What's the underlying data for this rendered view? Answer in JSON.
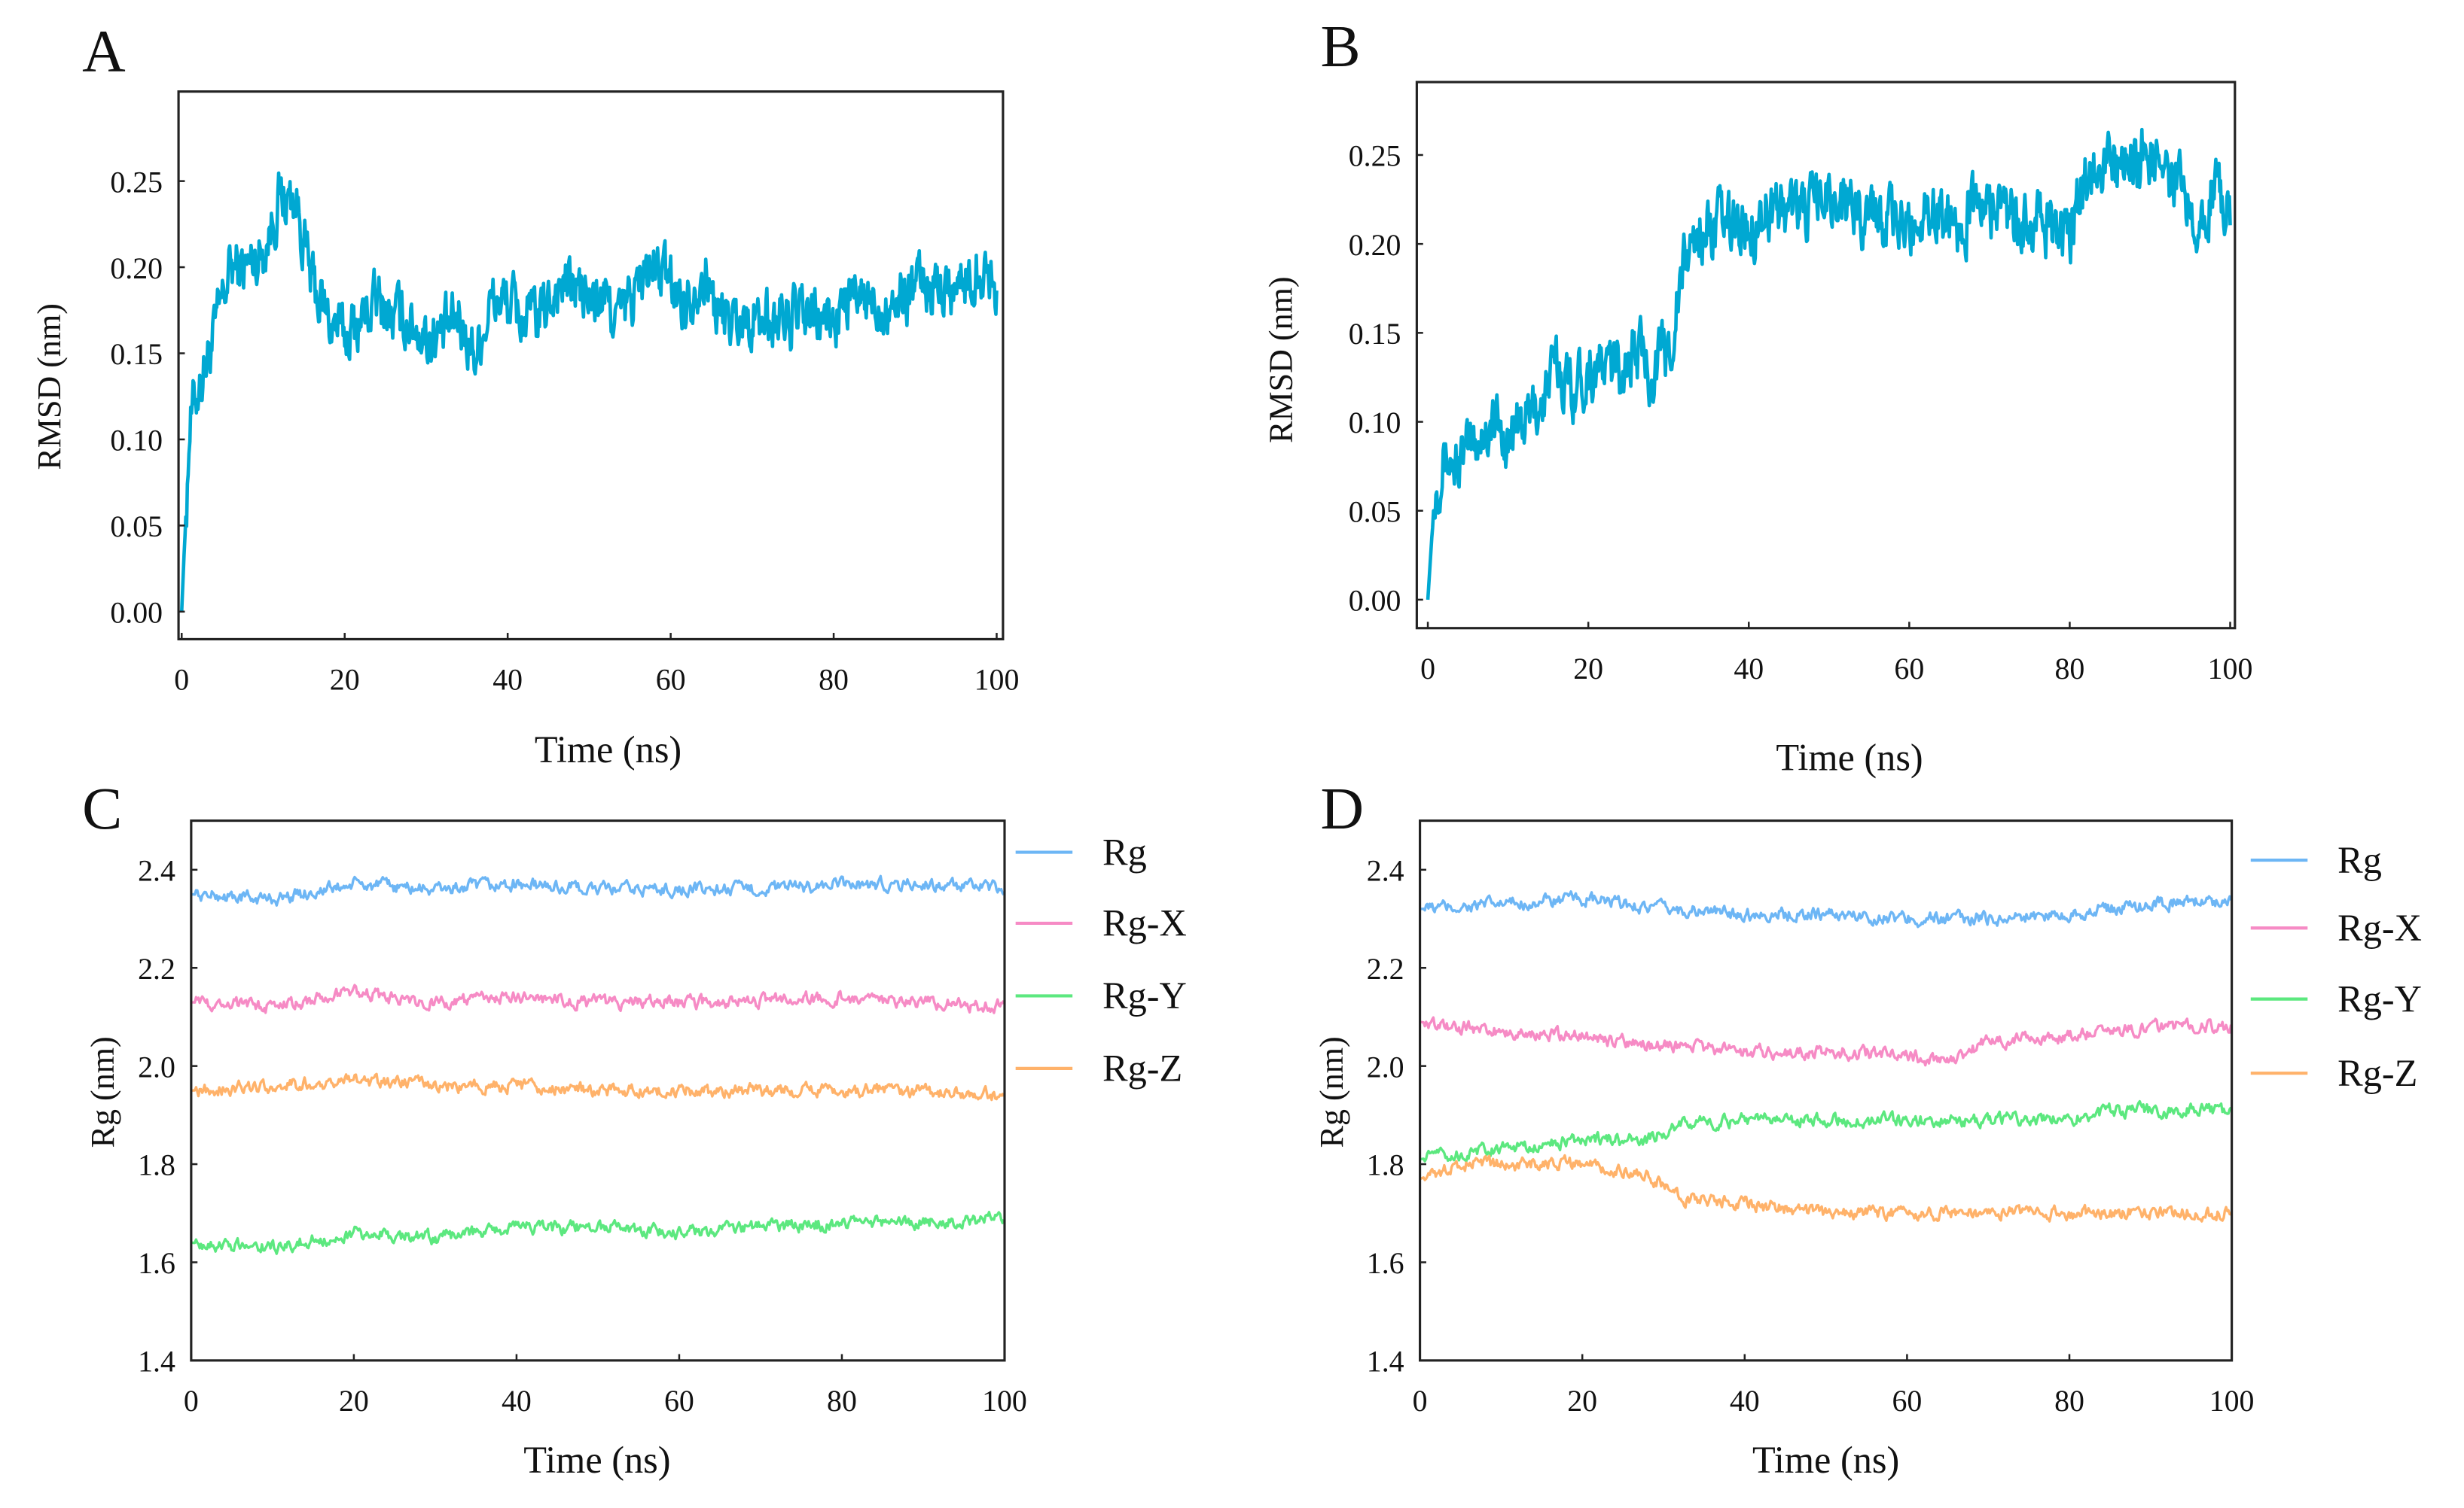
{
  "chart_data": [
    {
      "id": "A",
      "panel_label": "A",
      "type": "line",
      "xlabel": "Time (ns)",
      "ylabel": "RMSD (nm)",
      "xlim": [
        0,
        100
      ],
      "ylim": [
        -0.016,
        0.302
      ],
      "xticks": [
        "0",
        "20",
        "40",
        "60",
        "80",
        "100"
      ],
      "yticks": [
        "0.00",
        "0.05",
        "0.10",
        "0.15",
        "0.20",
        "0.25"
      ],
      "series": [
        {
          "name": "RMSD",
          "color": "#00A8D2",
          "x": [
            0,
            1,
            2,
            4,
            6,
            8,
            10,
            12,
            14,
            16,
            18,
            20,
            22,
            24,
            26,
            28,
            30,
            32,
            34,
            36,
            38,
            40,
            42,
            44,
            46,
            48,
            50,
            52,
            54,
            56,
            58,
            60,
            62,
            64,
            66,
            68,
            70,
            72,
            74,
            76,
            78,
            80,
            82,
            84,
            86,
            88,
            90,
            92,
            94,
            96,
            98,
            100
          ],
          "y": [
            0.0,
            0.11,
            0.13,
            0.16,
            0.2,
            0.2,
            0.21,
            0.24,
            0.24,
            0.19,
            0.17,
            0.16,
            0.17,
            0.18,
            0.17,
            0.17,
            0.16,
            0.16,
            0.17,
            0.15,
            0.18,
            0.18,
            0.17,
            0.17,
            0.19,
            0.19,
            0.18,
            0.18,
            0.17,
            0.19,
            0.2,
            0.19,
            0.18,
            0.2,
            0.17,
            0.17,
            0.17,
            0.17,
            0.17,
            0.17,
            0.17,
            0.17,
            0.18,
            0.18,
            0.18,
            0.18,
            0.19,
            0.19,
            0.19,
            0.19,
            0.2,
            0.19
          ]
        }
      ]
    },
    {
      "id": "B",
      "panel_label": "B",
      "type": "line",
      "xlabel": "Time (ns)",
      "ylabel": "RMSD (nm)",
      "xlim": [
        0,
        100
      ],
      "ylim": [
        -0.016,
        0.291
      ],
      "xticks": [
        "0",
        "20",
        "40",
        "60",
        "80",
        "100"
      ],
      "yticks": [
        "0.00",
        "0.05",
        "0.10",
        "0.15",
        "0.20",
        "0.25"
      ],
      "series": [
        {
          "name": "RMSD",
          "color": "#00A8D2",
          "x": [
            0,
            1,
            2,
            4,
            6,
            8,
            10,
            12,
            14,
            16,
            18,
            20,
            22,
            24,
            26,
            28,
            30,
            32,
            34,
            36,
            38,
            40,
            42,
            44,
            46,
            48,
            50,
            52,
            54,
            56,
            58,
            60,
            62,
            64,
            66,
            68,
            70,
            72,
            74,
            76,
            78,
            80,
            82,
            84,
            86,
            88,
            90,
            92,
            94,
            96,
            98,
            100
          ],
          "y": [
            0.0,
            0.07,
            0.08,
            0.075,
            0.09,
            0.1,
            0.09,
            0.1,
            0.11,
            0.13,
            0.12,
            0.13,
            0.13,
            0.13,
            0.14,
            0.13,
            0.14,
            0.19,
            0.21,
            0.21,
            0.21,
            0.21,
            0.22,
            0.22,
            0.22,
            0.22,
            0.23,
            0.22,
            0.22,
            0.22,
            0.21,
            0.21,
            0.22,
            0.22,
            0.21,
            0.22,
            0.22,
            0.22,
            0.21,
            0.21,
            0.21,
            0.2,
            0.24,
            0.25,
            0.24,
            0.25,
            0.25,
            0.24,
            0.23,
            0.22,
            0.23,
            0.22
          ]
        }
      ]
    },
    {
      "id": "C",
      "panel_label": "C",
      "type": "line",
      "xlabel": "Time (ns)",
      "ylabel": "Rg (nm)",
      "xlim": [
        0,
        100
      ],
      "ylim": [
        1.4,
        2.5
      ],
      "xticks": [
        "0",
        "20",
        "40",
        "60",
        "80",
        "100"
      ],
      "yticks": [
        "1.4",
        "1.6",
        "1.8",
        "2.0",
        "2.2",
        "2.4"
      ],
      "legend_position": "right-outside",
      "series": [
        {
          "name": "Rg",
          "color": "#6DB6F5",
          "x": [
            0,
            10,
            20,
            30,
            40,
            50,
            60,
            70,
            80,
            90,
            100
          ],
          "y": [
            2.35,
            2.34,
            2.37,
            2.36,
            2.37,
            2.36,
            2.36,
            2.36,
            2.37,
            2.37,
            2.36
          ]
        },
        {
          "name": "Rg-X",
          "color": "#F68BC5",
          "x": [
            0,
            10,
            20,
            30,
            40,
            50,
            60,
            70,
            80,
            90,
            100
          ],
          "y": [
            2.13,
            2.12,
            2.15,
            2.13,
            2.14,
            2.13,
            2.13,
            2.13,
            2.14,
            2.13,
            2.12
          ]
        },
        {
          "name": "Rg-Y",
          "color": "#5CE87F",
          "x": [
            0,
            10,
            20,
            30,
            40,
            50,
            60,
            70,
            80,
            90,
            100
          ],
          "y": [
            1.64,
            1.63,
            1.66,
            1.65,
            1.67,
            1.67,
            1.66,
            1.67,
            1.68,
            1.68,
            1.69
          ]
        },
        {
          "name": "Rg-Z",
          "color": "#FFB26A",
          "x": [
            0,
            10,
            20,
            30,
            40,
            50,
            60,
            70,
            80,
            90,
            100
          ],
          "y": [
            1.95,
            1.96,
            1.97,
            1.96,
            1.96,
            1.95,
            1.95,
            1.95,
            1.95,
            1.95,
            1.94
          ]
        }
      ]
    },
    {
      "id": "D",
      "panel_label": "D",
      "type": "line",
      "xlabel": "Time (ns)",
      "ylabel": "Rg (nm)",
      "xlim": [
        0,
        100
      ],
      "ylim": [
        1.4,
        2.5
      ],
      "xticks": [
        "0",
        "20",
        "40",
        "60",
        "80",
        "100"
      ],
      "yticks": [
        "1.4",
        "1.6",
        "1.8",
        "2.0",
        "2.2",
        "2.4"
      ],
      "legend_position": "right-outside",
      "series": [
        {
          "name": "Rg",
          "color": "#6DB6F5",
          "x": [
            0,
            10,
            20,
            30,
            40,
            50,
            60,
            70,
            80,
            90,
            100
          ],
          "y": [
            2.32,
            2.33,
            2.34,
            2.32,
            2.31,
            2.31,
            2.3,
            2.3,
            2.31,
            2.33,
            2.34
          ]
        },
        {
          "name": "Rg-X",
          "color": "#F68BC5",
          "x": [
            0,
            10,
            20,
            30,
            40,
            50,
            60,
            65,
            70,
            80,
            90,
            100
          ],
          "y": [
            2.09,
            2.07,
            2.06,
            2.04,
            2.03,
            2.03,
            2.02,
            2.01,
            2.05,
            2.06,
            2.08,
            2.08
          ]
        },
        {
          "name": "Rg-Y",
          "color": "#5CE87F",
          "x": [
            0,
            10,
            20,
            28,
            32,
            40,
            50,
            60,
            70,
            80,
            85,
            90,
            100
          ],
          "y": [
            1.81,
            1.83,
            1.85,
            1.85,
            1.88,
            1.89,
            1.89,
            1.89,
            1.89,
            1.89,
            1.91,
            1.91,
            1.91
          ]
        },
        {
          "name": "Rg-Z",
          "color": "#FFB26A",
          "x": [
            0,
            5,
            10,
            20,
            28,
            32,
            40,
            50,
            60,
            70,
            80,
            90,
            100
          ],
          "y": [
            1.77,
            1.8,
            1.8,
            1.8,
            1.78,
            1.73,
            1.72,
            1.7,
            1.7,
            1.7,
            1.7,
            1.7,
            1.7
          ]
        }
      ]
    }
  ]
}
